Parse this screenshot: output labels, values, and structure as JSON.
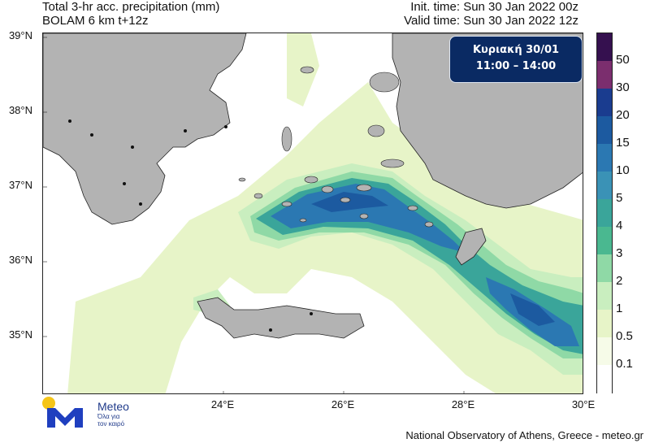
{
  "header": {
    "title_line1": "Total 3-hr acc. precipitation (mm)",
    "title_line2": "BOLAM 6 km t+12z",
    "init_time": "Init. time: Sun 30 Jan 2022 00z",
    "valid_time": "Valid time: Sun 30 Jan 2022 12z"
  },
  "badge": {
    "line1": "Κυριακή 30/01",
    "line2": "11:00 – 14:00"
  },
  "axes": {
    "latitudes": [
      "39°N",
      "38°N",
      "37°N",
      "36°N",
      "35°N"
    ],
    "longitudes": [
      "24°E",
      "26°E",
      "28°E",
      "30°E"
    ]
  },
  "colorbar": {
    "labels": [
      "50",
      "30",
      "20",
      "15",
      "10",
      "5",
      "4",
      "3",
      "2",
      "1",
      "0.5",
      "0.1"
    ],
    "colors": [
      "#35104f",
      "#7b2e6e",
      "#1a3c8f",
      "#1c5aa0",
      "#2b78b2",
      "#3a92b6",
      "#3aa59a",
      "#4ab890",
      "#8fd9a6",
      "#c9eebf",
      "#e7f4c8",
      "#f6fbe8",
      "#ffffff"
    ]
  },
  "map_colors": {
    "land": "#b3b3b3",
    "sea": "#ffffff",
    "precip_light": "#e7f4c8",
    "precip_mid": "#c9eebf",
    "precip_green": "#8fd9a6",
    "precip_teal": "#3aa59a",
    "precip_blue": "#2b78b2",
    "precip_dark": "#1c5aa0"
  },
  "logo": {
    "name": "Meteo",
    "tagline_1": "Όλα για",
    "tagline_2": "τον καιρό"
  },
  "footer": "National Observatory of Athens, Greece - meteo.gr"
}
